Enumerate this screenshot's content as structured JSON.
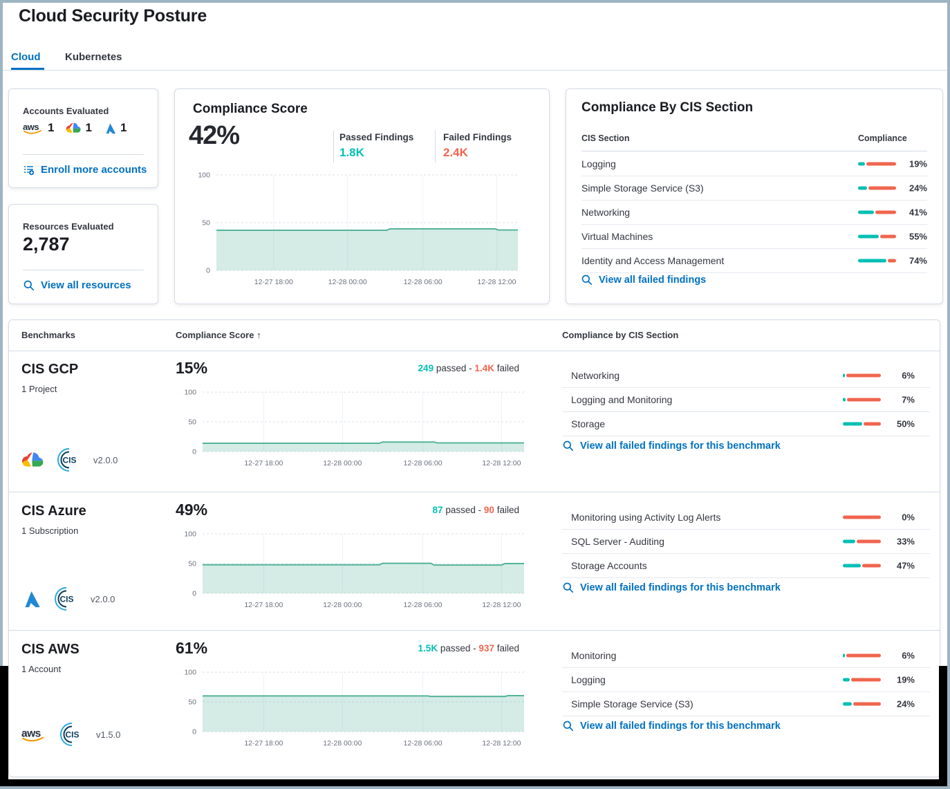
{
  "page": {
    "title": "Cloud Security Posture"
  },
  "tabs": [
    {
      "label": "Cloud",
      "active": true
    },
    {
      "label": "Kubernetes",
      "active": false
    }
  ],
  "colors": {
    "link_blue": "#0071C2",
    "teal": "#00BFB3",
    "red": "#F0654E",
    "chart_line": "#54B399",
    "chart_fill": "rgba(84,179,153,0.25)"
  },
  "accounts_card": {
    "title": "Accounts Evaluated",
    "providers": [
      {
        "name": "aws",
        "count": "1"
      },
      {
        "name": "gcp",
        "count": "1"
      },
      {
        "name": "azure",
        "count": "1"
      }
    ],
    "link": "Enroll more accounts"
  },
  "resources_card": {
    "title": "Resources Evaluated",
    "value": "2,787",
    "link": "View all resources"
  },
  "score_card": {
    "title": "Compliance Score",
    "score": "42%",
    "passed_label": "Passed Findings",
    "passed_value": "1.8K",
    "failed_label": "Failed Findings",
    "failed_value": "2.4K"
  },
  "cis_card": {
    "title": "Compliance By CIS Section",
    "col_section": "CIS Section",
    "col_compliance": "Compliance",
    "rows": [
      {
        "label": "Logging",
        "pct": 19,
        "pct_label": "19%"
      },
      {
        "label": "Simple Storage Service (S3)",
        "pct": 24,
        "pct_label": "24%"
      },
      {
        "label": "Networking",
        "pct": 41,
        "pct_label": "41%"
      },
      {
        "label": "Virtual Machines",
        "pct": 55,
        "pct_label": "55%"
      },
      {
        "label": "Identity and Access Management",
        "pct": 74,
        "pct_label": "74%"
      }
    ],
    "link": "View all failed findings"
  },
  "benchmarks": {
    "col_benchmarks": "Benchmarks",
    "col_score": "Compliance Score",
    "sort_arrow": "↑",
    "col_sections": "Compliance by CIS Section",
    "passed_word": "passed",
    "sep": "-",
    "failed_word": "failed",
    "rows": [
      {
        "name": "CIS GCP",
        "sub": "1 Project",
        "provider": "gcp",
        "version": "v2.0.0",
        "score": "15%",
        "passed": "249",
        "failed": "1.4K",
        "sections": [
          {
            "label": "Networking",
            "pct": 6,
            "pct_label": "6%"
          },
          {
            "label": "Logging and Monitoring",
            "pct": 7,
            "pct_label": "7%"
          },
          {
            "label": "Storage",
            "pct": 50,
            "pct_label": "50%"
          }
        ],
        "link": "View all failed findings for this benchmark"
      },
      {
        "name": "CIS Azure",
        "sub": "1 Subscription",
        "provider": "azure",
        "version": "v2.0.0",
        "score": "49%",
        "passed": "87",
        "failed": "90",
        "sections": [
          {
            "label": "Monitoring using Activity Log Alerts",
            "pct": 0,
            "pct_label": "0%"
          },
          {
            "label": "SQL Server - Auditing",
            "pct": 33,
            "pct_label": "33%"
          },
          {
            "label": "Storage Accounts",
            "pct": 47,
            "pct_label": "47%"
          }
        ],
        "link": "View all failed findings for this benchmark"
      },
      {
        "name": "CIS AWS",
        "sub": "1 Account",
        "provider": "aws",
        "version": "v1.5.0",
        "score": "61%",
        "passed": "1.5K",
        "failed": "937",
        "sections": [
          {
            "label": "Monitoring",
            "pct": 6,
            "pct_label": "6%"
          },
          {
            "label": "Logging",
            "pct": 19,
            "pct_label": "19%"
          },
          {
            "label": "Simple Storage Service (S3)",
            "pct": 24,
            "pct_label": "24%"
          }
        ],
        "link": "View all failed findings for this benchmark"
      }
    ]
  },
  "chart_data": [
    {
      "name": "overall-compliance-trend",
      "type": "area",
      "title": "Compliance Score 42%",
      "ylim": [
        0,
        100
      ],
      "y_ticks": [
        100,
        50,
        0
      ],
      "grid": true,
      "legend": false,
      "x_ticks": [
        {
          "label": "12-27 18:00",
          "pos": 0.19
        },
        {
          "label": "12-28 00:00",
          "pos": 0.435
        },
        {
          "label": "12-28 06:00",
          "pos": 0.685
        },
        {
          "label": "12-28 12:00",
          "pos": 0.93
        }
      ],
      "points": [
        [
          0,
          42
        ],
        [
          0.565,
          42
        ],
        [
          0.575,
          43.5
        ],
        [
          0.925,
          43.5
        ],
        [
          0.935,
          42.3
        ],
        [
          1,
          42.3
        ]
      ]
    },
    {
      "name": "cis-gcp-trend",
      "type": "area",
      "title": "CIS GCP 15%",
      "ylim": [
        0,
        100
      ],
      "y_ticks": [
        100,
        50,
        0
      ],
      "grid": true,
      "legend": false,
      "x_ticks": [
        {
          "label": "12-27 18:00",
          "pos": 0.19
        },
        {
          "label": "12-28 00:00",
          "pos": 0.435
        },
        {
          "label": "12-28 06:00",
          "pos": 0.685
        },
        {
          "label": "12-28 12:00",
          "pos": 0.93
        }
      ],
      "points": [
        [
          0,
          14
        ],
        [
          0.55,
          14
        ],
        [
          0.56,
          16
        ],
        [
          0.72,
          16
        ],
        [
          0.73,
          14.5
        ],
        [
          1,
          14.5
        ]
      ]
    },
    {
      "name": "cis-azure-trend",
      "type": "area",
      "title": "CIS Azure 49%",
      "ylim": [
        0,
        100
      ],
      "y_ticks": [
        100,
        50,
        0
      ],
      "grid": true,
      "legend": false,
      "x_ticks": [
        {
          "label": "12-27 18:00",
          "pos": 0.19
        },
        {
          "label": "12-28 00:00",
          "pos": 0.435
        },
        {
          "label": "12-28 06:00",
          "pos": 0.685
        },
        {
          "label": "12-28 12:00",
          "pos": 0.93
        }
      ],
      "points": [
        [
          0,
          48
        ],
        [
          0.55,
          48
        ],
        [
          0.56,
          50.5
        ],
        [
          0.71,
          50.5
        ],
        [
          0.72,
          47.5
        ],
        [
          0.93,
          47.5
        ],
        [
          0.94,
          50
        ],
        [
          1,
          50
        ]
      ]
    },
    {
      "name": "cis-aws-trend",
      "type": "area",
      "title": "CIS AWS 61%",
      "ylim": [
        0,
        100
      ],
      "y_ticks": [
        100,
        50,
        0
      ],
      "grid": true,
      "legend": false,
      "x_ticks": [
        {
          "label": "12-27 18:00",
          "pos": 0.19
        },
        {
          "label": "12-28 00:00",
          "pos": 0.435
        },
        {
          "label": "12-28 06:00",
          "pos": 0.685
        },
        {
          "label": "12-28 12:00",
          "pos": 0.93
        }
      ],
      "points": [
        [
          0,
          60
        ],
        [
          0.7,
          60
        ],
        [
          0.71,
          59.2
        ],
        [
          0.94,
          59.2
        ],
        [
          0.95,
          60.5
        ],
        [
          1,
          60.5
        ]
      ]
    }
  ]
}
